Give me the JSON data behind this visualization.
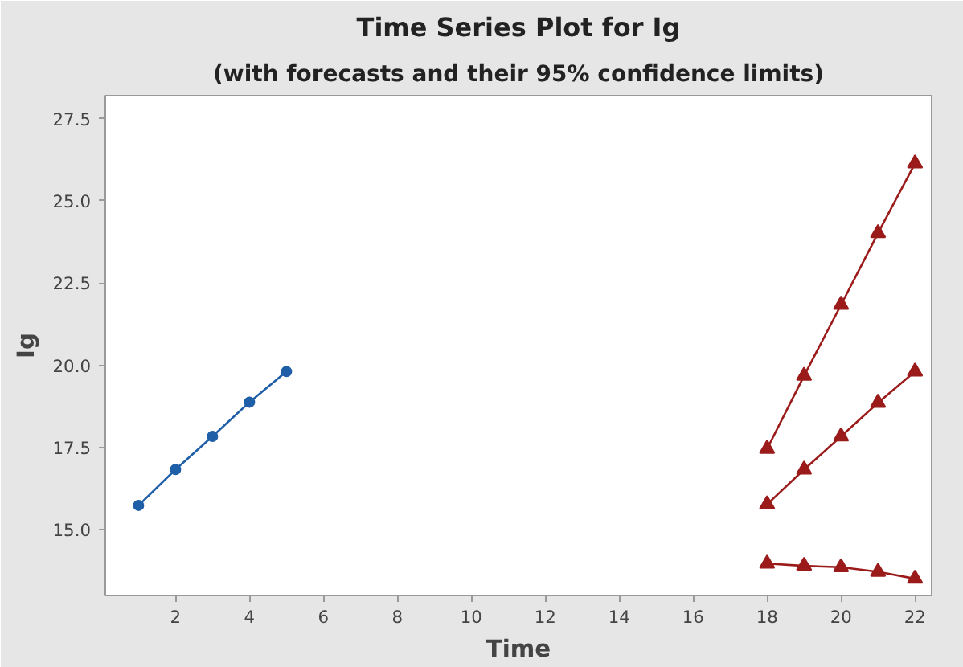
{
  "chart_data": {
    "type": "line",
    "title": "Time Series Plot for Ig",
    "subtitle": "(with forecasts and their 95% confidence limits)",
    "xlabel": "Time",
    "ylabel": "Ig",
    "xlim": [
      0.1,
      22.45
    ],
    "xticks": [
      2,
      4,
      6,
      8,
      10,
      12,
      14,
      16,
      18,
      20,
      22
    ],
    "ylim": [
      13.0,
      28.2
    ],
    "yticks": [
      {
        "value": 15,
        "label": "15.0"
      },
      17.5,
      {
        "value": 20,
        "label": "20.0"
      },
      22.5,
      {
        "value": 25,
        "label": "25.0"
      },
      27.5
    ],
    "grid": false,
    "line_style": "solid",
    "series": [
      {
        "x": [
          1,
          2,
          3,
          4,
          5
        ],
        "values": [
          15.74,
          16.83,
          17.84,
          18.88,
          19.81
        ],
        "color": "#1f5fa8",
        "marker": "circle"
      },
      {
        "x": [
          18,
          19,
          20,
          21,
          22
        ],
        "values": [
          17.46,
          19.68,
          21.84,
          24.02,
          26.14
        ],
        "color": "#9b1b1b",
        "marker": "triangle"
      },
      {
        "x": [
          18,
          19,
          20,
          21,
          22
        ],
        "values": [
          15.77,
          16.83,
          17.84,
          18.86,
          19.81
        ],
        "color": "#9b1b1b",
        "marker": "triangle"
      },
      {
        "x": [
          18,
          19,
          20,
          21,
          22
        ],
        "values": [
          13.97,
          13.9,
          13.86,
          13.72,
          13.51
        ],
        "color": "#9b1b1b",
        "marker": "triangle"
      }
    ]
  }
}
